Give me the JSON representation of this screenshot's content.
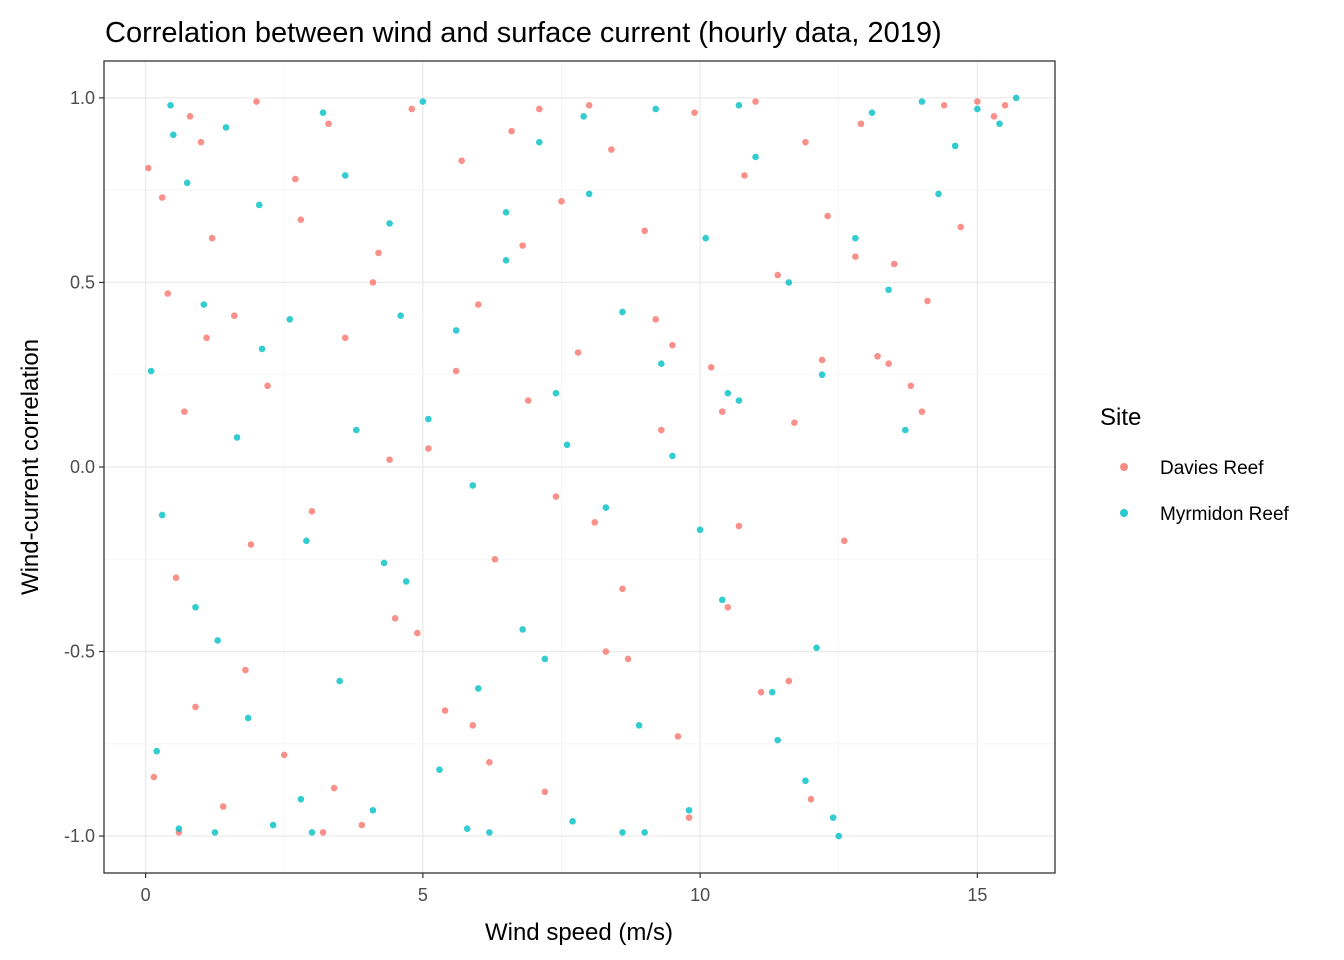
{
  "chart_data": {
    "type": "scatter",
    "title": "Correlation between wind and surface current (hourly data, 2019)",
    "xlabel": "Wind speed (m/s)",
    "ylabel": "Wind-current correlation",
    "xlim": [
      -0.75,
      16.4
    ],
    "ylim": [
      -1.1,
      1.1
    ],
    "x_ticks": [
      0,
      5,
      10,
      15
    ],
    "x_tick_labels": [
      "0",
      "5",
      "10",
      "15"
    ],
    "y_ticks": [
      -1.0,
      -0.5,
      0.0,
      0.5,
      1.0
    ],
    "y_tick_labels": [
      "-1.0",
      "-0.5",
      "0.0",
      "0.5",
      "1.0"
    ],
    "grid": true,
    "legend": {
      "title": "Site",
      "position": "right",
      "entries": [
        "Davies Reef",
        "Myrmidon Reef"
      ]
    },
    "series": [
      {
        "name": "Davies Reef",
        "color": "#F8766D",
        "points_note_omitted": null,
        "x": [
          0.05,
          0.15,
          0.3,
          0.4,
          0.55,
          0.7,
          0.8,
          0.9,
          1.0,
          1.2,
          1.4,
          1.6,
          1.8,
          2.0,
          2.2,
          2.5,
          2.8,
          3.0,
          3.3,
          3.6,
          3.9,
          4.2,
          4.5,
          4.8,
          5.1,
          5.4,
          5.7,
          6.0,
          6.3,
          6.6,
          6.9,
          7.2,
          7.5,
          7.8,
          8.1,
          8.4,
          8.7,
          9.0,
          9.3,
          9.6,
          9.9,
          10.2,
          10.5,
          10.8,
          11.1,
          11.4,
          11.7,
          12.0,
          12.3,
          12.6,
          12.9,
          13.2,
          13.5,
          13.8,
          14.1,
          14.4,
          14.7,
          15.0,
          15.3,
          15.5,
          0.6,
          1.1,
          1.9,
          2.7,
          3.4,
          4.1,
          4.9,
          5.6,
          6.2,
          6.8,
          7.4,
          8.0,
          8.6,
          9.2,
          9.8,
          10.4,
          11.0,
          11.6,
          12.2,
          12.8,
          13.4,
          14.0,
          3.2,
          4.4,
          5.9,
          7.1,
          8.3,
          9.5,
          10.7,
          11.9
        ],
        "y": [
          0.81,
          -0.84,
          0.73,
          0.47,
          -0.3,
          0.15,
          0.95,
          -0.65,
          0.88,
          0.62,
          -0.92,
          0.41,
          -0.55,
          0.99,
          0.22,
          -0.78,
          0.67,
          -0.12,
          0.93,
          0.35,
          -0.97,
          0.58,
          -0.41,
          0.97,
          0.05,
          -0.66,
          0.83,
          0.44,
          -0.25,
          0.91,
          0.18,
          -0.88,
          0.72,
          0.31,
          -0.15,
          0.86,
          -0.52,
          0.64,
          0.1,
          -0.73,
          0.96,
          0.27,
          -0.38,
          0.79,
          -0.61,
          0.52,
          0.12,
          -0.9,
          0.68,
          -0.2,
          0.93,
          0.3,
          0.55,
          0.22,
          0.45,
          0.98,
          0.65,
          0.99,
          0.95,
          0.98,
          -0.99,
          0.35,
          -0.21,
          0.78,
          -0.87,
          0.5,
          -0.45,
          0.26,
          -0.8,
          0.6,
          -0.08,
          0.98,
          -0.33,
          0.4,
          -0.95,
          0.15,
          0.99,
          -0.58,
          0.29,
          0.57,
          0.28,
          0.15,
          -0.99,
          0.02,
          -0.7,
          0.97,
          -0.5,
          0.33,
          -0.16,
          0.88
        ]
      },
      {
        "name": "Myrmidon Reef",
        "color": "#00BFC4",
        "x": [
          0.1,
          0.2,
          0.3,
          0.45,
          0.6,
          0.75,
          0.9,
          1.05,
          1.25,
          1.45,
          1.65,
          1.85,
          2.05,
          2.3,
          2.6,
          2.9,
          3.2,
          3.5,
          3.8,
          4.1,
          4.4,
          4.7,
          5.0,
          5.3,
          5.6,
          5.9,
          6.2,
          6.5,
          6.8,
          7.1,
          7.4,
          7.7,
          8.0,
          8.3,
          8.6,
          8.9,
          9.2,
          9.5,
          9.8,
          10.1,
          10.4,
          10.7,
          11.0,
          11.3,
          11.6,
          11.9,
          12.2,
          12.5,
          12.8,
          13.1,
          13.4,
          13.7,
          14.0,
          14.3,
          14.6,
          15.0,
          15.4,
          15.7,
          0.5,
          1.3,
          2.1,
          2.8,
          3.6,
          4.3,
          5.1,
          5.8,
          6.5,
          7.2,
          7.9,
          8.6,
          9.3,
          10.0,
          10.7,
          11.4,
          12.1,
          12.4,
          3.0,
          4.6,
          6.0,
          7.6,
          9.0,
          10.5
        ],
        "y": [
          0.26,
          -0.77,
          -0.13,
          0.98,
          -0.98,
          0.77,
          -0.38,
          0.44,
          -0.99,
          0.92,
          0.08,
          -0.68,
          0.71,
          -0.97,
          0.4,
          -0.2,
          0.96,
          -0.58,
          0.1,
          -0.93,
          0.66,
          -0.31,
          0.99,
          -0.82,
          0.37,
          -0.05,
          -0.99,
          0.56,
          -0.44,
          0.88,
          0.2,
          -0.96,
          0.74,
          -0.11,
          0.42,
          -0.7,
          0.97,
          0.03,
          -0.93,
          0.62,
          -0.36,
          0.18,
          0.84,
          -0.61,
          0.5,
          -0.85,
          0.25,
          -1.0,
          0.62,
          0.96,
          0.48,
          0.1,
          0.99,
          0.74,
          0.87,
          0.97,
          0.93,
          1.0,
          0.9,
          -0.47,
          0.32,
          -0.9,
          0.79,
          -0.26,
          0.13,
          -0.98,
          0.69,
          -0.52,
          0.95,
          -0.99,
          0.28,
          -0.17,
          0.98,
          -0.74,
          -0.49,
          -0.95,
          -0.99,
          0.41,
          -0.6,
          0.06,
          -0.99,
          0.2
        ]
      }
    ]
  }
}
